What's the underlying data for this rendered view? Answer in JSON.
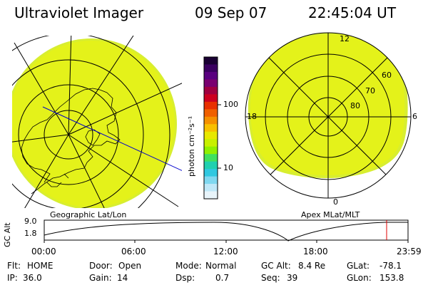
{
  "header": {
    "title": "Ultraviolet Imager",
    "date": "09 Sep 07",
    "time": "22:45:04 UT"
  },
  "colorbar": {
    "unit_label": "photon cm⁻²s⁻¹",
    "tick_labels": [
      "100",
      "10"
    ],
    "colors": [
      "#1a0033",
      "#3a0060",
      "#5a0080",
      "#7a0070",
      "#a00040",
      "#cc0020",
      "#e83000",
      "#f06000",
      "#f59000",
      "#f8c000",
      "#e8e800",
      "#c8f000",
      "#90f000",
      "#40e060",
      "#20d0b0",
      "#30c8e0",
      "#80d8f0",
      "#c0e8f8",
      "#e8f4fa"
    ]
  },
  "left_map": {
    "label": "Geographic Lat/Lon",
    "disk_color": "#e4f21a"
  },
  "right_map": {
    "label": "Apex MLat/MLT",
    "mlt_labels": {
      "top": "12",
      "left": "18",
      "right": "6",
      "bottom": "0"
    },
    "lat_labels": [
      "60",
      "70",
      "80"
    ]
  },
  "altitude_plot": {
    "ylabel": "GC Alt",
    "yticks": [
      "9.0",
      "1.8"
    ],
    "xticks": [
      "00:00",
      "06:00",
      "12:00",
      "18:00",
      "23:59"
    ],
    "current_time_marker_color": "#e00000"
  },
  "info": {
    "flt_label": "Flt:",
    "flt_value": "HOME",
    "door_label": "Door:",
    "door_value": "Open",
    "mode_label": "Mode:",
    "mode_value": "Normal",
    "gcalt_label": "GC Alt:",
    "gcalt_value": "8.4 Re",
    "glat_label": "GLat:",
    "glat_value": "-78.1",
    "ip_label": "IP:",
    "ip_value": "36.0",
    "gain_label": "Gain:",
    "gain_value": "14",
    "dsp_label": "Dsp:",
    "dsp_value": "0.7",
    "seq_label": "Seq:",
    "seq_value": "39",
    "glon_label": "GLon:",
    "glon_value": "153.8"
  }
}
